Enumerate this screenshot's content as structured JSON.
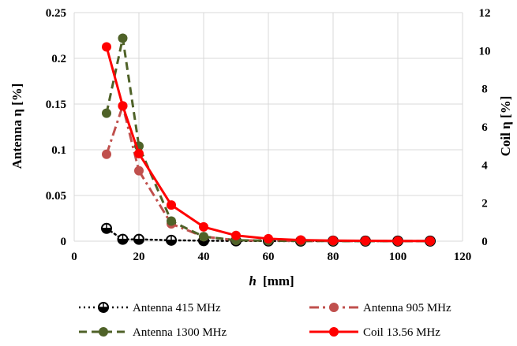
{
  "chart_data": {
    "type": "line",
    "xlabel_var": "h",
    "xlabel_unit": "[mm]",
    "ylabel_left": "Antenna η [%]",
    "ylabel_right": "Coil η [%]",
    "xlim": [
      0,
      120
    ],
    "ylim_left": [
      0,
      0.25
    ],
    "ylim_right": [
      0,
      12
    ],
    "x_ticks": [
      0,
      20,
      40,
      60,
      80,
      100,
      120
    ],
    "y_left_ticks": [
      "0",
      "0.05",
      "0.1",
      "0.15",
      "0.2",
      "0.25"
    ],
    "y_right_ticks": [
      "0",
      "2",
      "4",
      "6",
      "8",
      "10",
      "12"
    ],
    "grid": true,
    "legend_position": "bottom",
    "series": [
      {
        "name": "Antenna 415 MHz",
        "axis": "left",
        "color": "#000000",
        "dash": "dotted",
        "marker": "crossed-circle",
        "x": [
          10,
          15,
          20,
          30,
          40,
          50,
          60,
          70,
          80,
          90,
          100,
          110
        ],
        "y": [
          0.014,
          0.002,
          0.002,
          0.001,
          0.0005,
          0.0003,
          0.0002,
          0.0001,
          0.0001,
          0.0001,
          0.0001,
          0.0001
        ]
      },
      {
        "name": "Antenna 905 MHz",
        "axis": "left",
        "color": "#c0504d",
        "dash": "dash-dot",
        "marker": "circle",
        "x": [
          10,
          15,
          20,
          30,
          40,
          50,
          60,
          70,
          80,
          90,
          100,
          110
        ],
        "y": [
          0.095,
          0.148,
          0.077,
          0.019,
          0.005,
          0.001,
          0.0005,
          0.0003,
          0.0002,
          0.0001,
          0.0001,
          0.0001
        ]
      },
      {
        "name": "Antenna 1300 MHz",
        "axis": "left",
        "color": "#4f6228",
        "dash": "dashed",
        "marker": "circle",
        "x": [
          10,
          15,
          20,
          30,
          40,
          50,
          60,
          70,
          80,
          90,
          100,
          110
        ],
        "y": [
          0.14,
          0.222,
          0.104,
          0.022,
          0.005,
          0.001,
          0.0005,
          0.0003,
          0.0002,
          0.0001,
          0.0001,
          0.0001
        ]
      },
      {
        "name": "Coil 13.56 MHz",
        "axis": "right",
        "color": "#ff0000",
        "dash": "solid",
        "marker": "circle",
        "x": [
          10,
          15,
          20,
          30,
          40,
          50,
          60,
          70,
          80,
          90,
          100,
          110
        ],
        "y": [
          10.2,
          7.1,
          4.6,
          1.9,
          0.75,
          0.3,
          0.13,
          0.06,
          0.03,
          0.02,
          0.01,
          0.01
        ]
      }
    ]
  }
}
